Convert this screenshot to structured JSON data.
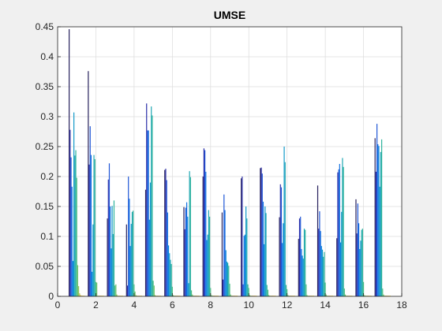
{
  "chart_data": {
    "type": "bar",
    "title": "UMSE",
    "xlabel": "",
    "ylabel": "",
    "xlim": [
      0,
      18
    ],
    "ylim": [
      0,
      0.45
    ],
    "xticks": [
      0,
      2,
      4,
      6,
      8,
      10,
      12,
      14,
      16,
      18
    ],
    "yticks": [
      0,
      0.05,
      0.1,
      0.15,
      0.2,
      0.25,
      0.3,
      0.35,
      0.4,
      0.45
    ],
    "grid": true,
    "categories": [
      1,
      2,
      3,
      4,
      5,
      6,
      7,
      8,
      9,
      10,
      11,
      12,
      13,
      14,
      15,
      16,
      17
    ],
    "group_width": 0.84,
    "series_colors": [
      "#26205c",
      "#2b2ea8",
      "#1f56d6",
      "#1170e0",
      "#0b87dc",
      "#1098c9",
      "#1fa7b3",
      "#2eb39c",
      "#4bbc85",
      "#6ec26a",
      "#93c35a",
      "#b7bf47",
      "#d4b83d",
      "#e9b83a",
      "#f4c33a",
      "#f7d438",
      "#f9e026"
    ],
    "values": [
      [
        0.446,
        0.278,
        0.232,
        0.183,
        0.059,
        0.307,
        0.235,
        0.244,
        0.198,
        0.052,
        0.017,
        0.005,
        0.002,
        0.001,
        0.001,
        0.001,
        0.001
      ],
      [
        0.376,
        0.22,
        0.284,
        0.236,
        0.041,
        0.12,
        0.236,
        0.229,
        0.024,
        0.023,
        0.001,
        0.001,
        0.001,
        0.001,
        0.001,
        0.001,
        0.001
      ],
      [
        0.13,
        0.195,
        0.222,
        0.15,
        0.08,
        0.151,
        0.104,
        0.16,
        0.018,
        0.02,
        0.003,
        0.001,
        0.001,
        0.001,
        0.001,
        0.001,
        0.001
      ],
      [
        0.12,
        0.018,
        0.2,
        0.163,
        0.084,
        0.121,
        0.141,
        0.143,
        0.02,
        0.008,
        0.002,
        0.001,
        0.001,
        0.001,
        0.001,
        0.001,
        0.001
      ],
      [
        0.178,
        0.322,
        0.277,
        0.277,
        0.128,
        0.19,
        0.317,
        0.302,
        0.026,
        0.018,
        0.002,
        0.001,
        0.001,
        0.001,
        0.001,
        0.001,
        0.001
      ],
      [
        0.211,
        0.213,
        0.194,
        0.14,
        0.085,
        0.072,
        0.061,
        0.054,
        0.016,
        0.002,
        0.001,
        0.001,
        0.001,
        0.001,
        0.001,
        0.001,
        0.001
      ],
      [
        0.149,
        0.112,
        0.148,
        0.157,
        0.133,
        0.022,
        0.209,
        0.199,
        0.01,
        0.003,
        0.001,
        0.001,
        0.001,
        0.001,
        0.001,
        0.001,
        0.001
      ],
      [
        0.2,
        0.247,
        0.244,
        0.208,
        0.094,
        0.103,
        0.144,
        0.133,
        0.014,
        0.002,
        0.001,
        0.001,
        0.001,
        0.001,
        0.001,
        0.001,
        0.001
      ],
      [
        0.14,
        0.028,
        0.17,
        0.144,
        0.077,
        0.058,
        0.056,
        0.051,
        0.021,
        0.003,
        0.001,
        0.001,
        0.001,
        0.001,
        0.001,
        0.001,
        0.001
      ],
      [
        0.197,
        0.2,
        0.02,
        0.101,
        0.103,
        0.15,
        0.13,
        0.02,
        0.014,
        0.002,
        0.001,
        0.001,
        0.001,
        0.001,
        0.001,
        0.001,
        0.001
      ],
      [
        0.214,
        0.215,
        0.205,
        0.158,
        0.087,
        0.15,
        0.139,
        0.019,
        0.011,
        0.002,
        0.001,
        0.001,
        0.001,
        0.001,
        0.001,
        0.001,
        0.001
      ],
      [
        0.132,
        0.187,
        0.182,
        0.089,
        0.122,
        0.25,
        0.224,
        0.019,
        0.012,
        0.002,
        0.001,
        0.001,
        0.001,
        0.001,
        0.001,
        0.001,
        0.001
      ],
      [
        0.096,
        0.13,
        0.133,
        0.079,
        0.068,
        0.063,
        0.113,
        0.111,
        0.02,
        0.002,
        0.001,
        0.001,
        0.001,
        0.001,
        0.001,
        0.001,
        0.001
      ],
      [
        0.185,
        0.113,
        0.142,
        0.109,
        0.084,
        0.078,
        0.066,
        0.074,
        0.023,
        0.003,
        0.001,
        0.001,
        0.001,
        0.001,
        0.001,
        0.001,
        0.001
      ],
      [
        0.097,
        0.207,
        0.212,
        0.221,
        0.09,
        0.141,
        0.231,
        0.216,
        0.013,
        0.003,
        0.001,
        0.001,
        0.001,
        0.001,
        0.001,
        0.001,
        0.001
      ],
      [
        0.162,
        0.105,
        0.155,
        0.122,
        0.079,
        0.093,
        0.111,
        0.113,
        0.024,
        0.002,
        0.001,
        0.001,
        0.001,
        0.001,
        0.001,
        0.001,
        0.001
      ],
      [
        0.264,
        0.208,
        0.288,
        0.254,
        0.251,
        0.183,
        0.241,
        0.262,
        0.013,
        0.003,
        0.001,
        0.001,
        0.001,
        0.001,
        0.001,
        0.001,
        0.001
      ]
    ]
  }
}
